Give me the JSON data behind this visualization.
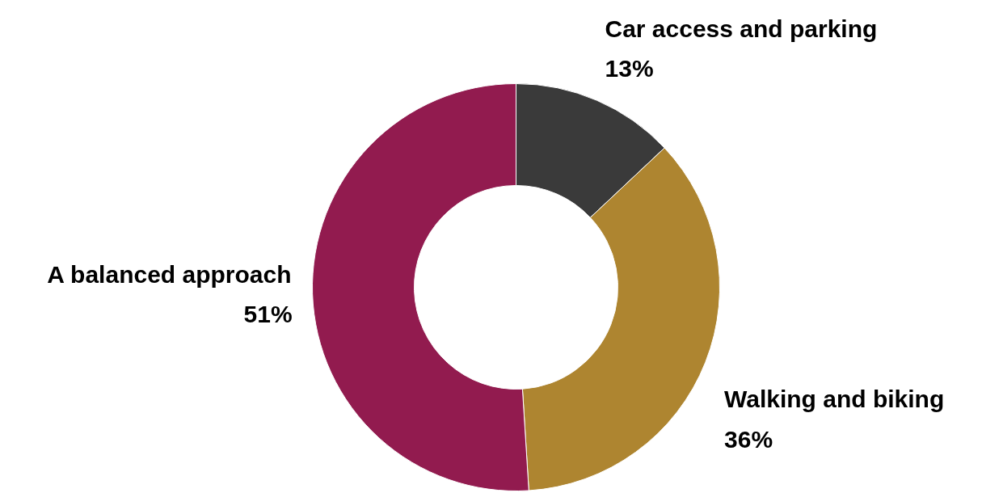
{
  "chart_data": {
    "type": "donut",
    "categories": [
      "Car access and parking",
      "Walking and biking",
      "A balanced approach"
    ],
    "values": [
      13,
      36,
      51
    ],
    "colors": [
      "#3a3a3a",
      "#ae8530",
      "#921b4f"
    ],
    "value_labels": [
      "13%",
      "36%",
      "51%"
    ]
  }
}
